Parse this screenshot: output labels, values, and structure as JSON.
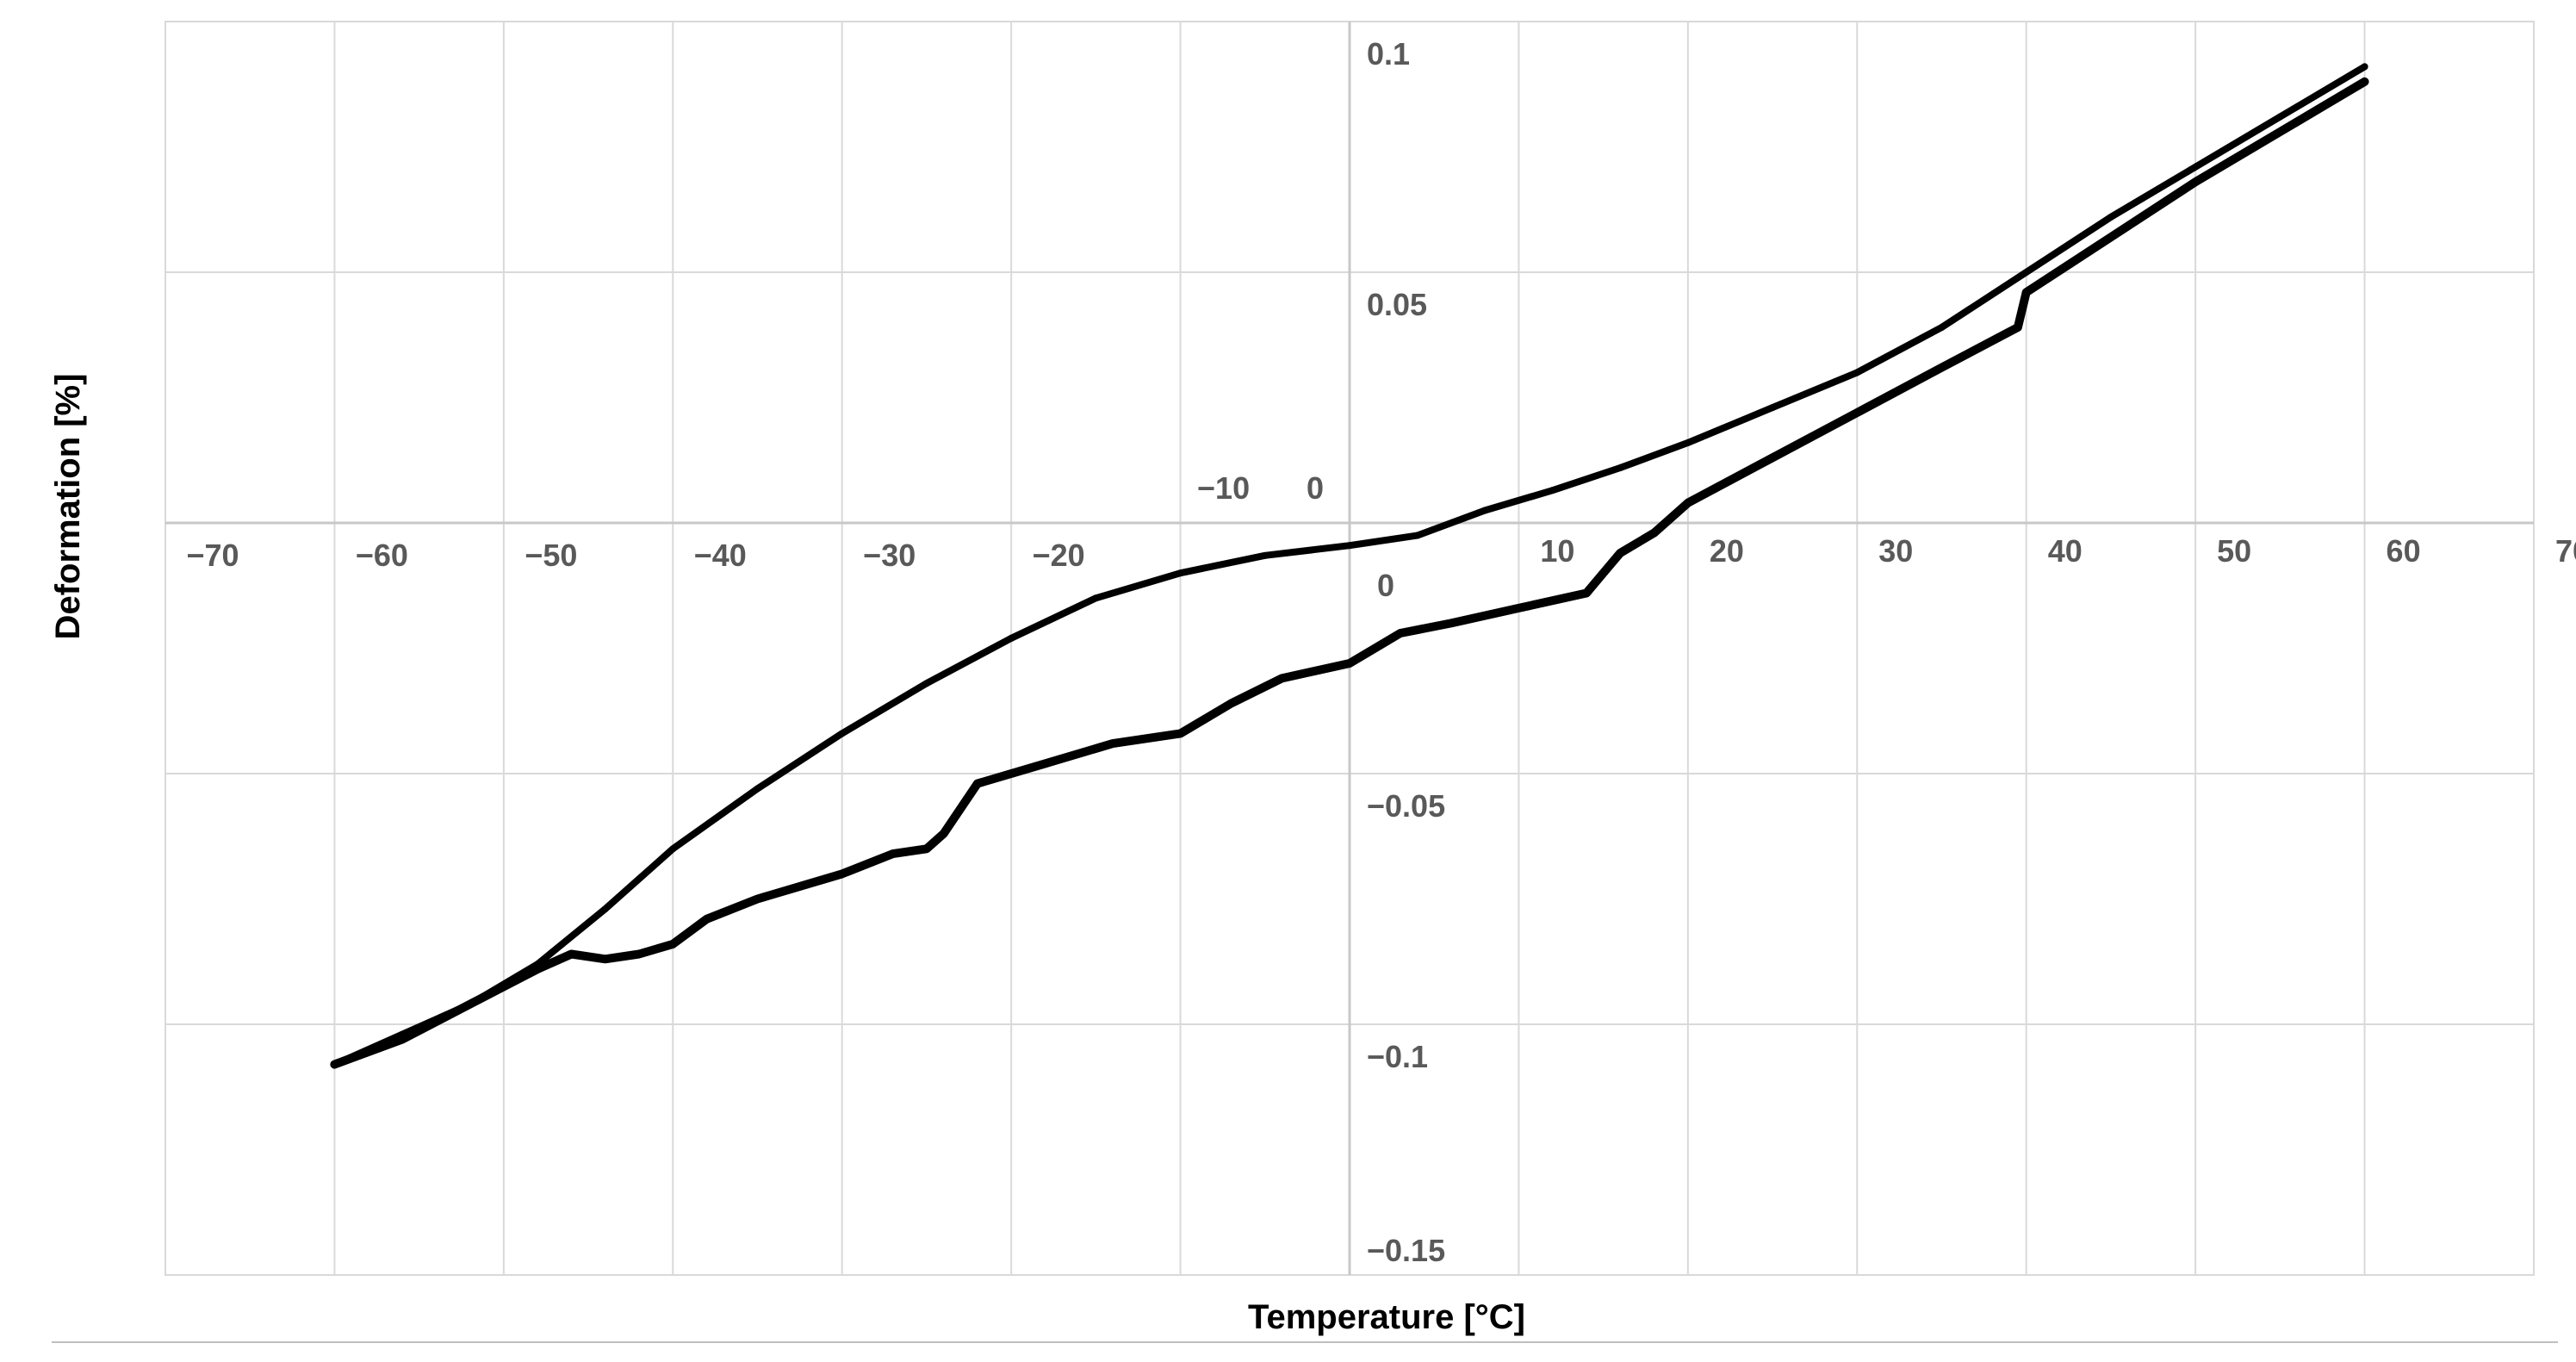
{
  "chart_data": {
    "type": "line",
    "title": "",
    "xlabel": "Temperature [°C]",
    "ylabel": "Deformation [%]",
    "xlim": [
      -70,
      70
    ],
    "ylim": [
      -0.15,
      0.1
    ],
    "grid": true,
    "x_ticks": [
      {
        "value": -70,
        "label": "−70"
      },
      {
        "value": -60,
        "label": "−60"
      },
      {
        "value": -50,
        "label": "−50"
      },
      {
        "value": -40,
        "label": "−40"
      },
      {
        "value": -30,
        "label": "−30"
      },
      {
        "value": -20,
        "label": "−20"
      },
      {
        "value": -10,
        "label": "−10"
      },
      {
        "value": 0,
        "label": "0"
      },
      {
        "value": 10,
        "label": "10"
      },
      {
        "value": 20,
        "label": "20"
      },
      {
        "value": 30,
        "label": "30"
      },
      {
        "value": 40,
        "label": "40"
      },
      {
        "value": 50,
        "label": "50"
      },
      {
        "value": 60,
        "label": "60"
      },
      {
        "value": 70,
        "label": "70"
      }
    ],
    "y_ticks": [
      {
        "value": 0.1,
        "label": "0.1"
      },
      {
        "value": 0.05,
        "label": "0.05"
      },
      {
        "value": 0,
        "label": "0"
      },
      {
        "value": -0.05,
        "label": "−0.05"
      },
      {
        "value": -0.1,
        "label": "−0.1"
      },
      {
        "value": -0.15,
        "label": "−0.15"
      }
    ],
    "origin_label": "0",
    "series": [
      {
        "color": "#000000",
        "x": [
          -60,
          -56,
          -52,
          -48,
          -44,
          -40,
          -35,
          -30,
          -25,
          -20,
          -15,
          -10,
          -5,
          0,
          4,
          8,
          12,
          16,
          20,
          25,
          30,
          35,
          40,
          45,
          50,
          55,
          60
        ],
        "y": [
          -0.108,
          -0.102,
          -0.096,
          -0.088,
          -0.077,
          -0.065,
          -0.053,
          -0.042,
          -0.032,
          -0.023,
          -0.015,
          -0.01,
          -0.0065,
          -0.0045,
          -0.0025,
          0.0025,
          0.0065,
          0.011,
          0.016,
          0.023,
          0.03,
          0.039,
          0.05,
          0.061,
          0.071,
          0.081,
          0.091
        ]
      },
      {
        "color": "#000000",
        "x": [
          -60,
          -56,
          -52,
          -48,
          -46,
          -44,
          -42,
          -40,
          -38,
          -35,
          -30,
          -27,
          -25,
          -24,
          -22,
          -18,
          -14,
          -10,
          -7,
          -4,
          0,
          3,
          6,
          10,
          14,
          15,
          16,
          18,
          20,
          25,
          30,
          35,
          39.5,
          40,
          45,
          50,
          55,
          60
        ],
        "y": [
          -0.108,
          -0.103,
          -0.096,
          -0.089,
          -0.086,
          -0.087,
          -0.086,
          -0.084,
          -0.079,
          -0.075,
          -0.07,
          -0.066,
          -0.065,
          -0.062,
          -0.052,
          -0.048,
          -0.044,
          -0.042,
          -0.036,
          -0.031,
          -0.028,
          -0.022,
          -0.02,
          -0.017,
          -0.014,
          -0.01,
          -0.006,
          -0.002,
          0.004,
          0.013,
          0.022,
          0.031,
          0.039,
          0.046,
          0.057,
          0.068,
          0.078,
          0.088
        ]
      }
    ]
  }
}
